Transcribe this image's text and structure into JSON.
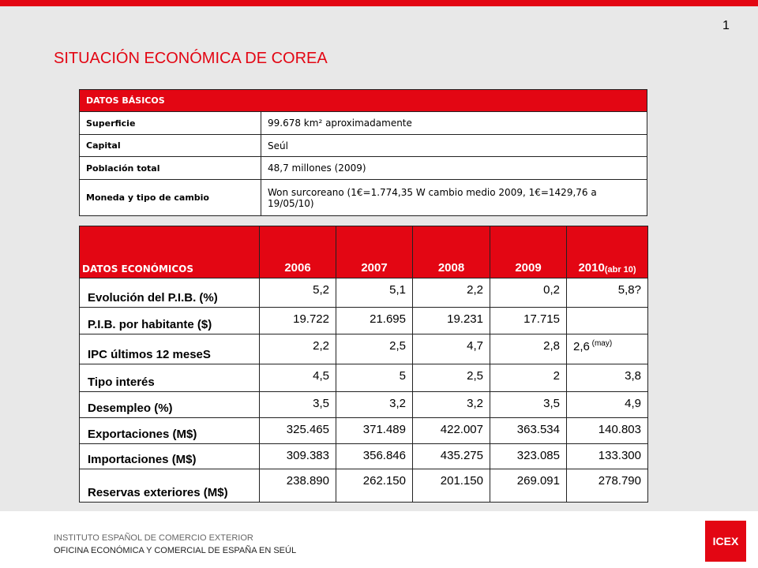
{
  "page_number": "1",
  "title": "SITUACIÓN ECONÓMICA DE COREA",
  "basic": {
    "header": "DATOS BÁSICOS",
    "rows": [
      [
        "Superficie",
        "99.678 km² aproximadamente"
      ],
      [
        "Capital",
        "Seúl"
      ],
      [
        "Población total",
        "48,7 millones (2009)"
      ],
      [
        "Moneda y tipo de cambio",
        "Won surcoreano (1€=1.774,35 W cambio medio 2009, 1€=1429,76 a 19/05/10)"
      ]
    ]
  },
  "econ": {
    "header": "DATOS ECONÓMICOS",
    "years": [
      "2006",
      "2007",
      "2008",
      "2009",
      "2010"
    ],
    "last_year_note": "(abr 10)",
    "rows": [
      {
        "label": "Evolución del P.I.B. (%)",
        "values": [
          "5,2",
          "5,1",
          "2,2",
          "0,2",
          "5,8?"
        ]
      },
      {
        "label": "P.I.B. por habitante ($)",
        "values": [
          "19.722",
          "21.695",
          "19.231",
          "17.715",
          null
        ]
      },
      {
        "label": "IPC últimos 12 meseS",
        "values": [
          "2,2",
          "2,5",
          "4,7",
          "2,8",
          "2,6"
        ],
        "note": "(may)"
      },
      {
        "label": "Tipo interés",
        "values": [
          "4,5",
          "5",
          "2,5",
          "2",
          "3,8"
        ]
      },
      {
        "label": "Desempleo (%)",
        "values": [
          "3,5",
          "3,2",
          "3,2",
          "3,5",
          "4,9"
        ]
      },
      {
        "label": "Exportaciones (M$)",
        "values": [
          "325.465",
          "371.489",
          "422.007",
          "363.534",
          "140.803"
        ]
      },
      {
        "label": "Importaciones (M$)",
        "values": [
          "309.383",
          "356.846",
          "435.275",
          "323.085",
          "133.300"
        ]
      },
      {
        "label": "Reservas exteriores (M$)",
        "values": [
          "238.890",
          "262.150",
          "201.150",
          "269.091",
          "278.790"
        ]
      }
    ]
  },
  "footer": {
    "line1": "INSTITUTO  ESPAÑOL DE COMERCIO  EXTERIOR",
    "line2": "OFICINA  ECONÓMICA  Y COMERCIAL  DE ESPAÑA EN SEÚL",
    "logo": "ICEX"
  }
}
